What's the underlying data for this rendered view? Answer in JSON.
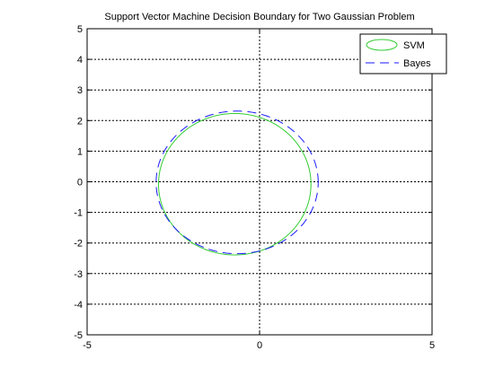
{
  "chart_data": {
    "type": "line",
    "title": "Support Vector Machine Decision Boundary for Two Gaussian Problem",
    "xlabel": "",
    "ylabel": "",
    "xlim": [
      -5,
      5
    ],
    "ylim": [
      -5,
      5
    ],
    "xticks": [
      -5,
      0,
      5
    ],
    "yticks": [
      -5,
      -4,
      -3,
      -2,
      -1,
      0,
      1,
      2,
      3,
      4,
      5
    ],
    "grid": true,
    "legend_position": "top-right",
    "series": [
      {
        "name": "SVM",
        "shape": "ellipse",
        "center": [
          -0.72,
          -0.08
        ],
        "radii": [
          2.21,
          2.31
        ],
        "color": "#33cc33",
        "dash": "solid"
      },
      {
        "name": "Bayes",
        "shape": "ellipse",
        "center": [
          -0.65,
          -0.02
        ],
        "radii": [
          2.35,
          2.33
        ],
        "color": "#1a1aff",
        "dash": "dashed"
      }
    ]
  }
}
